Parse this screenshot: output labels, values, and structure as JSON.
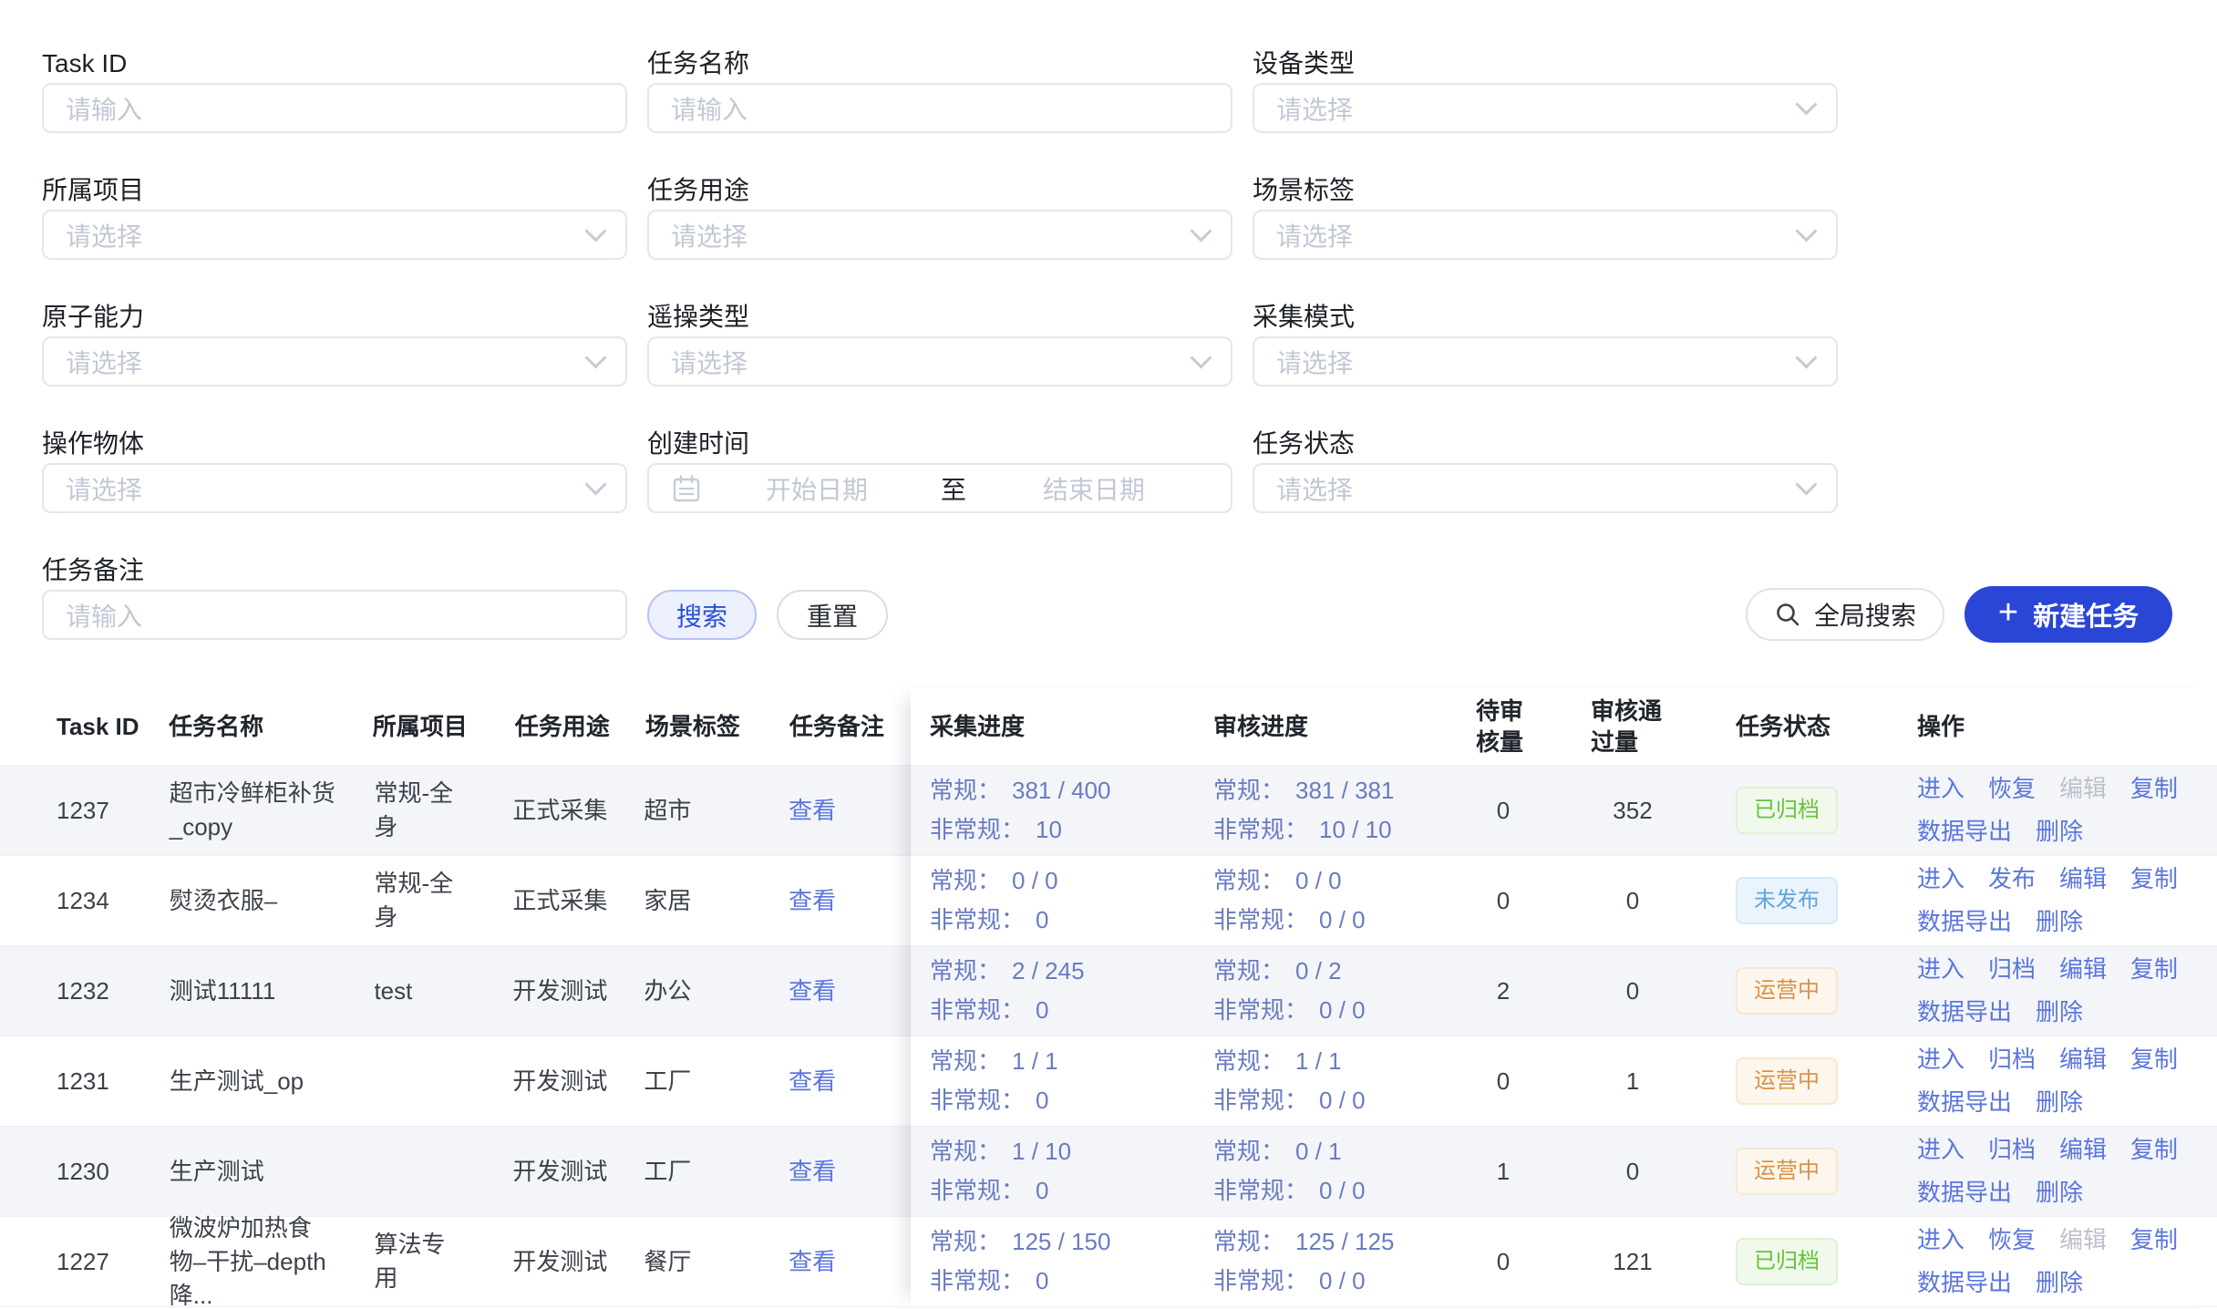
{
  "filters": {
    "fields": [
      {
        "label": "Task ID",
        "type": "input",
        "placeholder": "请输入"
      },
      {
        "label": "任务名称",
        "type": "input",
        "placeholder": "请输入"
      },
      {
        "label": "设备类型",
        "type": "select",
        "placeholder": "请选择"
      },
      {
        "label": "所属项目",
        "type": "select",
        "placeholder": "请选择"
      },
      {
        "label": "任务用途",
        "type": "select",
        "placeholder": "请选择"
      },
      {
        "label": "场景标签",
        "type": "select",
        "placeholder": "请选择"
      },
      {
        "label": "原子能力",
        "type": "select",
        "placeholder": "请选择"
      },
      {
        "label": "遥操类型",
        "type": "select",
        "placeholder": "请选择"
      },
      {
        "label": "采集模式",
        "type": "select",
        "placeholder": "请选择"
      },
      {
        "label": "操作物体",
        "type": "select",
        "placeholder": "请选择"
      },
      {
        "label": "创建时间",
        "type": "daterange",
        "start_placeholder": "开始日期",
        "separator": "至",
        "end_placeholder": "结束日期"
      },
      {
        "label": "任务状态",
        "type": "select",
        "placeholder": "请选择"
      },
      {
        "label": "任务备注",
        "type": "input",
        "placeholder": "请输入"
      }
    ]
  },
  "icons": {
    "global_search": "search-icon",
    "date_range": "calendar-icon",
    "select": "chevron-down-icon",
    "create_task": "plus-icon"
  },
  "buttons": {
    "search": "搜索",
    "reset": "重置",
    "global_search": "全局搜索",
    "create_task": "新建任务",
    "create_task_icon": "+"
  },
  "table": {
    "progress_labels": {
      "normal": "常规：",
      "abnormal": "非常规："
    },
    "remark_link_label": "查看",
    "columns_left": [
      {
        "key": "id",
        "label": "Task ID"
      },
      {
        "key": "name",
        "label": "任务名称"
      },
      {
        "key": "project",
        "label": "所属项目"
      },
      {
        "key": "purpose",
        "label": "任务用途"
      },
      {
        "key": "scene",
        "label": "场景标签"
      },
      {
        "key": "remark",
        "label": "任务备注"
      }
    ],
    "columns_right": [
      {
        "key": "collect",
        "label": "采集进度"
      },
      {
        "key": "review",
        "label": "审核进度"
      },
      {
        "key": "pending",
        "label": "待审核量"
      },
      {
        "key": "passed",
        "label": "审核通过量"
      },
      {
        "key": "status",
        "label": "任务状态"
      },
      {
        "key": "actions",
        "label": "操作"
      }
    ],
    "rows": [
      {
        "id": "1237",
        "name": "超市冷鲜柜补货_copy",
        "project": "常规-全身",
        "purpose": "正式采集",
        "scene": "超市",
        "collect": {
          "normal": "381 / 400",
          "abnormal": "10"
        },
        "review": {
          "normal": "381 / 381",
          "abnormal": "10 / 10"
        },
        "pending": "0",
        "passed": "352",
        "status": {
          "label": "已归档",
          "style": "green"
        },
        "actions": [
          {
            "label": "进入"
          },
          {
            "label": "恢复"
          },
          {
            "label": "编辑",
            "disabled": true
          },
          {
            "label": "复制"
          },
          {
            "label": "数据导出"
          },
          {
            "label": "删除"
          }
        ]
      },
      {
        "id": "1234",
        "name": "熨烫衣服–",
        "project": "常规-全身",
        "purpose": "正式采集",
        "scene": "家居",
        "collect": {
          "normal": "0 / 0",
          "abnormal": "0"
        },
        "review": {
          "normal": "0 / 0",
          "abnormal": "0 / 0"
        },
        "pending": "0",
        "passed": "0",
        "status": {
          "label": "未发布",
          "style": "blue"
        },
        "actions": [
          {
            "label": "进入"
          },
          {
            "label": "发布"
          },
          {
            "label": "编辑"
          },
          {
            "label": "复制"
          },
          {
            "label": "数据导出"
          },
          {
            "label": "删除"
          }
        ]
      },
      {
        "id": "1232",
        "name": "测试11111",
        "project": "test",
        "purpose": "开发测试",
        "scene": "办公",
        "collect": {
          "normal": "2 / 245",
          "abnormal": "0"
        },
        "review": {
          "normal": "0 / 2",
          "abnormal": "0 / 0"
        },
        "pending": "2",
        "passed": "0",
        "status": {
          "label": "运营中",
          "style": "orange"
        },
        "actions": [
          {
            "label": "进入"
          },
          {
            "label": "归档"
          },
          {
            "label": "编辑"
          },
          {
            "label": "复制"
          },
          {
            "label": "数据导出"
          },
          {
            "label": "删除"
          }
        ]
      },
      {
        "id": "1231",
        "name": "生产测试_op",
        "project": "",
        "purpose": "开发测试",
        "scene": "工厂",
        "collect": {
          "normal": "1 / 1",
          "abnormal": "0"
        },
        "review": {
          "normal": "1 / 1",
          "abnormal": "0 / 0"
        },
        "pending": "0",
        "passed": "1",
        "status": {
          "label": "运营中",
          "style": "orange"
        },
        "actions": [
          {
            "label": "进入"
          },
          {
            "label": "归档"
          },
          {
            "label": "编辑"
          },
          {
            "label": "复制"
          },
          {
            "label": "数据导出"
          },
          {
            "label": "删除"
          }
        ]
      },
      {
        "id": "1230",
        "name": "生产测试",
        "project": "",
        "purpose": "开发测试",
        "scene": "工厂",
        "collect": {
          "normal": "1 / 10",
          "abnormal": "0"
        },
        "review": {
          "normal": "0 / 1",
          "abnormal": "0 / 0"
        },
        "pending": "1",
        "passed": "0",
        "status": {
          "label": "运营中",
          "style": "orange"
        },
        "actions": [
          {
            "label": "进入"
          },
          {
            "label": "归档"
          },
          {
            "label": "编辑"
          },
          {
            "label": "复制"
          },
          {
            "label": "数据导出"
          },
          {
            "label": "删除"
          }
        ]
      },
      {
        "id": "1227",
        "name": "微波炉加热食物–干扰–depth降...",
        "project": "算法专用",
        "purpose": "开发测试",
        "scene": "餐厅",
        "collect": {
          "normal": "125 / 150",
          "abnormal": "0"
        },
        "review": {
          "normal": "125 / 125",
          "abnormal": "0 / 0"
        },
        "pending": "0",
        "passed": "121",
        "status": {
          "label": "已归档",
          "style": "green"
        },
        "actions": [
          {
            "label": "进入"
          },
          {
            "label": "恢复"
          },
          {
            "label": "编辑",
            "disabled": true
          },
          {
            "label": "复制"
          },
          {
            "label": "数据导出"
          },
          {
            "label": "删除"
          }
        ]
      }
    ]
  }
}
